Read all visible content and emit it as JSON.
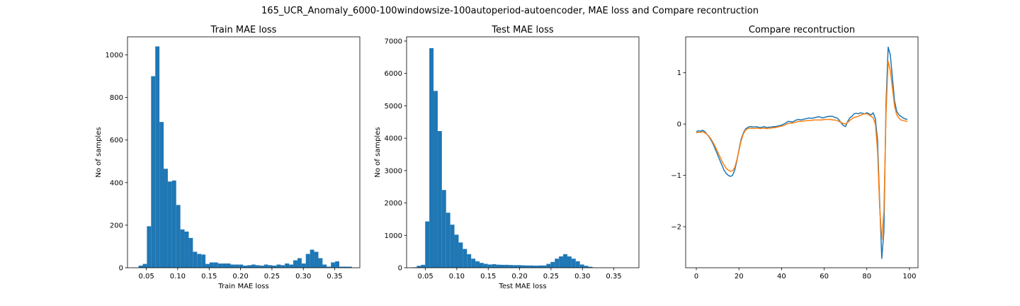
{
  "figure": {
    "suptitle": "165_UCR_Anomaly_6000-100windowsize-100autoperiod-autoencoder, MAE loss and Compare recontruction"
  },
  "chart_data": [
    {
      "type": "bar",
      "title": "Train MAE loss",
      "xlabel": "Train MAE loss",
      "ylabel": "No of samples",
      "xlim": [
        0.02,
        0.39
      ],
      "ylim": [
        0,
        1085
      ],
      "xticks": [
        0.05,
        0.1,
        0.15,
        0.2,
        0.25,
        0.3,
        0.35
      ],
      "xtick_labels": [
        "0.05",
        "0.10",
        "0.15",
        "0.20",
        "0.25",
        "0.30",
        "0.35"
      ],
      "yticks": [
        0,
        200,
        400,
        600,
        800,
        1000
      ],
      "ytick_labels": [
        "0",
        "200",
        "400",
        "600",
        "800",
        "1000"
      ],
      "bin_start": 0.0376,
      "bin_width": 0.00666,
      "counts": [
        10,
        18,
        195,
        900,
        1040,
        685,
        465,
        405,
        410,
        295,
        180,
        170,
        140,
        75,
        65,
        62,
        18,
        25,
        25,
        20,
        20,
        20,
        15,
        15,
        15,
        10,
        12,
        15,
        12,
        10,
        15,
        12,
        10,
        15,
        12,
        20,
        15,
        35,
        45,
        20,
        65,
        85,
        75,
        45,
        15,
        5,
        25,
        30,
        5,
        5,
        5
      ],
      "color": "#1f77b4"
    },
    {
      "type": "bar",
      "title": "Test MAE loss",
      "xlabel": "Test MAE loss",
      "ylabel": "No of samples",
      "xlim": [
        0.02,
        0.39
      ],
      "ylim": [
        0,
        7130
      ],
      "xticks": [
        0.05,
        0.1,
        0.15,
        0.2,
        0.25,
        0.3,
        0.35
      ],
      "xtick_labels": [
        "0.05",
        "0.10",
        "0.15",
        "0.20",
        "0.25",
        "0.30",
        "0.35"
      ],
      "yticks": [
        0,
        1000,
        2000,
        3000,
        4000,
        5000,
        6000,
        7000
      ],
      "ytick_labels": [
        "0",
        "1000",
        "2000",
        "3000",
        "4000",
        "5000",
        "6000",
        "7000"
      ],
      "bin_start": 0.0296,
      "bin_width": 0.00666,
      "counts": [
        15,
        60,
        90,
        1430,
        6780,
        5460,
        4220,
        2400,
        1700,
        1330,
        1020,
        780,
        580,
        420,
        280,
        200,
        150,
        120,
        100,
        110,
        95,
        90,
        90,
        85,
        80,
        80,
        75,
        70,
        70,
        65,
        70,
        70,
        120,
        180,
        280,
        350,
        420,
        350,
        280,
        200,
        100,
        60,
        30,
        10,
        5,
        5,
        5
      ],
      "color": "#1f77b4"
    },
    {
      "type": "line",
      "title": "Compare recontruction",
      "xlabel": "",
      "ylabel": "",
      "xlim": [
        -5,
        104
      ],
      "ylim": [
        -2.8,
        1.7
      ],
      "xticks": [
        0,
        20,
        40,
        60,
        80,
        100
      ],
      "xtick_labels": [
        "0",
        "20",
        "40",
        "60",
        "80",
        "100"
      ],
      "yticks": [
        -2,
        -1,
        0,
        1
      ],
      "ytick_labels": [
        "−2",
        "−1",
        "0",
        "1"
      ],
      "series": [
        {
          "color": "#1f77b4",
          "x": [
            0,
            1,
            2,
            3,
            4,
            5,
            6,
            7,
            8,
            9,
            10,
            11,
            12,
            13,
            14,
            15,
            16,
            17,
            18,
            19,
            20,
            21,
            22,
            23,
            24,
            25,
            26,
            27,
            28,
            29,
            30,
            31,
            32,
            33,
            34,
            35,
            36,
            37,
            38,
            39,
            40,
            41,
            42,
            43,
            44,
            45,
            46,
            47,
            48,
            49,
            50,
            51,
            52,
            53,
            54,
            55,
            56,
            57,
            58,
            59,
            60,
            61,
            62,
            63,
            64,
            65,
            66,
            67,
            68,
            69,
            70,
            71,
            72,
            73,
            74,
            75,
            76,
            77,
            78,
            79,
            80,
            81,
            82,
            83,
            84,
            85,
            86,
            87,
            88,
            89,
            90,
            91,
            92,
            93,
            94,
            95,
            96,
            97,
            98,
            99
          ],
          "y": [
            -0.15,
            -0.13,
            -0.14,
            -0.12,
            -0.15,
            -0.2,
            -0.25,
            -0.32,
            -0.4,
            -0.5,
            -0.6,
            -0.7,
            -0.8,
            -0.9,
            -0.96,
            -1.0,
            -1.02,
            -1.0,
            -0.9,
            -0.72,
            -0.5,
            -0.3,
            -0.18,
            -0.1,
            -0.07,
            -0.05,
            -0.05,
            -0.06,
            -0.05,
            -0.06,
            -0.07,
            -0.06,
            -0.05,
            -0.07,
            -0.06,
            -0.06,
            -0.05,
            -0.05,
            -0.04,
            -0.03,
            -0.02,
            0.0,
            0.02,
            0.05,
            0.05,
            0.04,
            0.06,
            0.08,
            0.09,
            0.08,
            0.09,
            0.1,
            0.11,
            0.12,
            0.11,
            0.12,
            0.13,
            0.14,
            0.14,
            0.12,
            0.13,
            0.14,
            0.15,
            0.15,
            0.15,
            0.13,
            0.12,
            0.08,
            0.02,
            -0.03,
            -0.05,
            0.05,
            0.12,
            0.15,
            0.2,
            0.21,
            0.2,
            0.22,
            0.21,
            0.2,
            0.22,
            0.2,
            0.18,
            0.22,
            0.1,
            -0.3,
            -1.5,
            -2.62,
            -2.1,
            0.4,
            1.5,
            1.35,
            0.9,
            0.45,
            0.25,
            0.18,
            0.15,
            0.12,
            0.1,
            0.09
          ]
        },
        {
          "color": "#ff7f0e",
          "x": [
            0,
            1,
            2,
            3,
            4,
            5,
            6,
            7,
            8,
            9,
            10,
            11,
            12,
            13,
            14,
            15,
            16,
            17,
            18,
            19,
            20,
            21,
            22,
            23,
            24,
            25,
            26,
            27,
            28,
            29,
            30,
            31,
            32,
            33,
            34,
            35,
            36,
            37,
            38,
            39,
            40,
            41,
            42,
            43,
            44,
            45,
            46,
            47,
            48,
            49,
            50,
            51,
            52,
            53,
            54,
            55,
            56,
            57,
            58,
            59,
            60,
            61,
            62,
            63,
            64,
            65,
            66,
            67,
            68,
            69,
            70,
            71,
            72,
            73,
            74,
            75,
            76,
            77,
            78,
            79,
            80,
            81,
            82,
            83,
            84,
            85,
            86,
            87,
            88,
            89,
            90,
            91,
            92,
            93,
            94,
            95,
            96,
            97,
            98,
            99
          ],
          "y": [
            -0.17,
            -0.16,
            -0.16,
            -0.15,
            -0.17,
            -0.2,
            -0.24,
            -0.3,
            -0.37,
            -0.45,
            -0.54,
            -0.63,
            -0.72,
            -0.8,
            -0.86,
            -0.9,
            -0.92,
            -0.91,
            -0.85,
            -0.7,
            -0.52,
            -0.33,
            -0.2,
            -0.12,
            -0.09,
            -0.08,
            -0.08,
            -0.09,
            -0.08,
            -0.08,
            -0.09,
            -0.08,
            -0.08,
            -0.09,
            -0.08,
            -0.08,
            -0.07,
            -0.07,
            -0.06,
            -0.05,
            -0.04,
            -0.03,
            -0.01,
            0.01,
            0.02,
            0.02,
            0.03,
            0.04,
            0.05,
            0.05,
            0.06,
            0.06,
            0.07,
            0.07,
            0.07,
            0.08,
            0.08,
            0.08,
            0.08,
            0.08,
            0.09,
            0.09,
            0.09,
            0.09,
            0.08,
            0.08,
            0.07,
            0.05,
            0.03,
            0.01,
            0.0,
            0.03,
            0.07,
            0.1,
            0.13,
            0.14,
            0.15,
            0.17,
            0.19,
            0.2,
            0.2,
            0.18,
            0.15,
            0.12,
            0.0,
            -0.5,
            -1.6,
            -2.25,
            -1.7,
            0.2,
            1.22,
            1.05,
            0.7,
            0.35,
            0.18,
            0.12,
            0.08,
            0.07,
            0.06,
            0.05
          ]
        }
      ]
    }
  ]
}
